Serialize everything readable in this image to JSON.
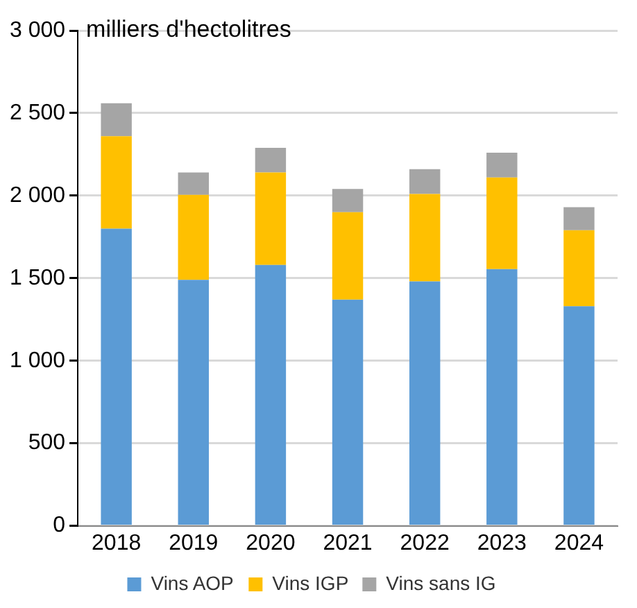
{
  "chart_data": {
    "type": "bar",
    "stacked": true,
    "ylabel": "milliers d'hectolitres",
    "categories": [
      "2018",
      "2019",
      "2020",
      "2021",
      "2022",
      "2023",
      "2024"
    ],
    "series": [
      {
        "name": "Vins AOP",
        "color": "#5b9bd5",
        "values": [
          1800,
          1490,
          1580,
          1370,
          1480,
          1555,
          1330
        ]
      },
      {
        "name": "Vins IGP",
        "color": "#ffc000",
        "values": [
          560,
          515,
          560,
          530,
          530,
          555,
          460
        ]
      },
      {
        "name": "Vins sans IG",
        "color": "#a5a5a5",
        "values": [
          200,
          135,
          150,
          140,
          150,
          150,
          140
        ]
      }
    ],
    "ylim": [
      0,
      3000
    ],
    "yticks": [
      {
        "value": 0,
        "label": "0"
      },
      {
        "value": 500,
        "label": "500"
      },
      {
        "value": 1000,
        "label": "1 000"
      },
      {
        "value": 1500,
        "label": "1 500"
      },
      {
        "value": 2000,
        "label": "2 000"
      },
      {
        "value": 2500,
        "label": "2 500"
      },
      {
        "value": 3000,
        "label": "3 000"
      }
    ],
    "grid": "y",
    "legend": "bottom"
  }
}
